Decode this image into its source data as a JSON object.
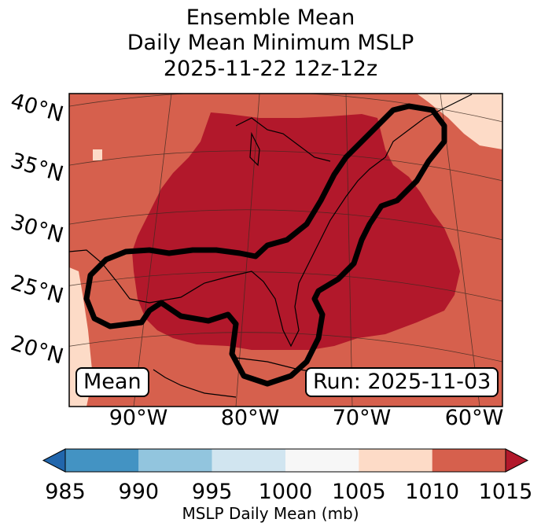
{
  "title": {
    "line1": "Ensemble Mean",
    "line2": "Daily Mean Minimum MSLP",
    "line3": "2025-11-22 12z-12z"
  },
  "map": {
    "lat_labels": [
      "40°N",
      "35°N",
      "30°N",
      "25°N",
      "20°N"
    ],
    "lon_labels": [
      "90°W",
      "80°W",
      "70°W",
      "60°W"
    ],
    "mean_label": "Mean",
    "run_label": "Run: 2025-11-03",
    "fill_colors": {
      "outer": "#d6604d",
      "inner": "#b2182b",
      "light": "#fddbc7",
      "contour": "#000000"
    }
  },
  "colorbar": {
    "ticks": [
      "985",
      "990",
      "995",
      "1000",
      "1005",
      "1010",
      "1015"
    ],
    "colors": [
      "#2166ac",
      "#4393c3",
      "#92c5de",
      "#d1e5f0",
      "#f7f7f7",
      "#fddbc7",
      "#d6604d",
      "#b2182b"
    ],
    "label": "MSLP Daily Mean (mb)"
  }
}
